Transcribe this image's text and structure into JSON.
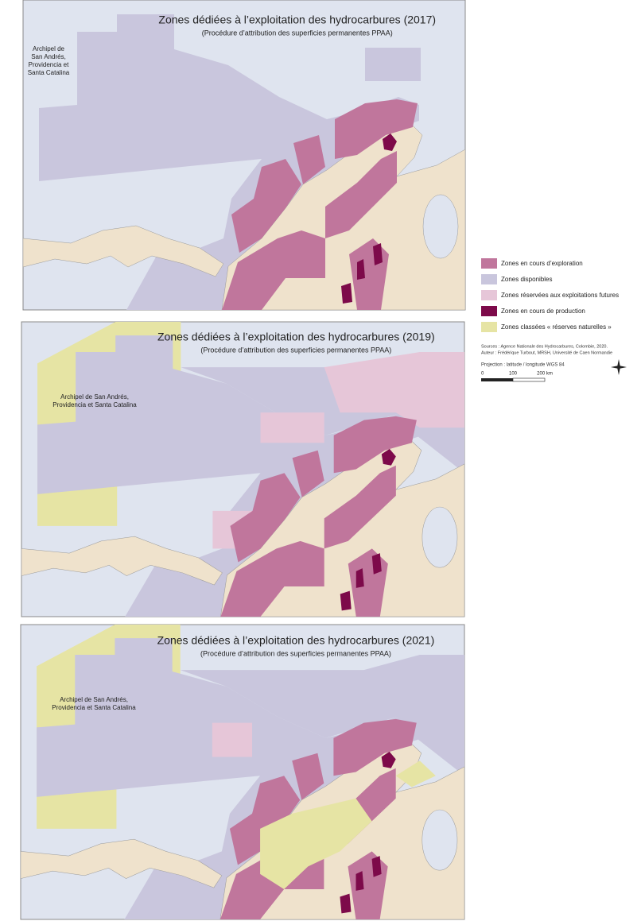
{
  "maps": [
    {
      "title": "Zones dédiées à l’exploitation des hydrocarbures (2017)",
      "subtitle": "(Procédure d’attribution des superficies permanentes PPAA)",
      "label": [
        "Archipel de",
        "San Andrés,",
        "Providencia et",
        "Santa Catalina"
      ]
    },
    {
      "title": "Zones dédiées à l’exploitation des hydrocarbures (2019)",
      "subtitle": "(Procédure d’attribution des superficies permanentes PPAA)",
      "label": [
        "Archipel de San Andrés,",
        "Providencia et Santa Catalina"
      ]
    },
    {
      "title": "Zones dédiées à l’exploitation des hydrocarbures (2021)",
      "subtitle": "(Procédure d’attribution des superficies permanentes PPAA)",
      "label": [
        "Archipel de San Andrés,",
        "Providencia et Santa Catalina"
      ]
    }
  ],
  "legend": [
    {
      "label": "Zones en cours d’exploration",
      "color": "#c0769c"
    },
    {
      "label": "Zones disponibles",
      "color": "#c9c6dd"
    },
    {
      "label": "Zones réservées aux exploitations futures",
      "color": "#e6c6d8"
    },
    {
      "label": "Zones en cours de production",
      "color": "#7d0a4a"
    },
    {
      "label": "Zones classées « réserves naturelles »",
      "color": "#e6e4a4"
    }
  ],
  "sources": [
    "Sources : Agence Nationale des Hydrocarbures, Colombie, 2020.",
    "Auteur : Frédérique Turbout, MRSH, Université de Caen Normandie"
  ],
  "projection": "Projection : latitude / longitude WGS 84",
  "scale": [
    "0",
    "100",
    "200 km"
  ]
}
